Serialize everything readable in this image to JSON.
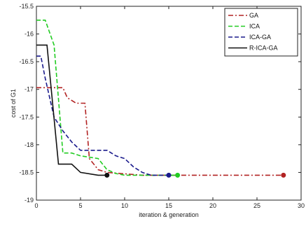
{
  "chart_data": {
    "type": "line",
    "title": "",
    "xlabel": "iteration & generation",
    "ylabel": "cost of G1",
    "xlim": [
      0,
      30
    ],
    "ylim": [
      -19,
      -15.5
    ],
    "xticks": [
      0,
      5,
      10,
      15,
      20,
      25,
      30
    ],
    "yticks": [
      -15.5,
      -16,
      -16.5,
      -17,
      -17.5,
      -18,
      -18.5,
      -19
    ],
    "xtick_labels": [
      "0",
      "5",
      "10",
      "15",
      "20",
      "25",
      "30"
    ],
    "ytick_labels": [
      "-15.5",
      "-16",
      "-16.5",
      "-17",
      "-17.5",
      "-18",
      "-18.5",
      "-19"
    ],
    "grid": false,
    "legend_position": "top-right",
    "series": [
      {
        "name": "GA",
        "color": "#b22222",
        "dash": "dashdot",
        "points": [
          [
            0,
            -16.97
          ],
          [
            3,
            -16.97
          ],
          [
            3.5,
            -17.15
          ],
          [
            4.5,
            -17.25
          ],
          [
            5.5,
            -17.25
          ],
          [
            6,
            -18.25
          ],
          [
            7,
            -18.45
          ],
          [
            8,
            -18.5
          ],
          [
            12,
            -18.55
          ],
          [
            16,
            -18.55
          ],
          [
            20,
            -18.55
          ],
          [
            28,
            -18.55
          ]
        ],
        "end_marker": true
      },
      {
        "name": "ICA",
        "color": "#22cc22",
        "dash": "dash",
        "points": [
          [
            0,
            -15.75
          ],
          [
            1,
            -15.75
          ],
          [
            2,
            -16.2
          ],
          [
            3,
            -18.15
          ],
          [
            4,
            -18.15
          ],
          [
            5,
            -18.2
          ],
          [
            7,
            -18.25
          ],
          [
            8,
            -18.45
          ],
          [
            9,
            -18.52
          ],
          [
            10,
            -18.55
          ],
          [
            14,
            -18.55
          ],
          [
            16,
            -18.55
          ]
        ],
        "end_marker": true
      },
      {
        "name": "ICA-GA",
        "color": "#1a1a8c",
        "dash": "dash",
        "points": [
          [
            0,
            -16.4
          ],
          [
            0.5,
            -16.4
          ],
          [
            1,
            -16.8
          ],
          [
            2,
            -17.5
          ],
          [
            3,
            -17.75
          ],
          [
            4,
            -17.95
          ],
          [
            5,
            -18.1
          ],
          [
            8,
            -18.1
          ],
          [
            9,
            -18.2
          ],
          [
            10,
            -18.25
          ],
          [
            11,
            -18.4
          ],
          [
            12,
            -18.5
          ],
          [
            13,
            -18.55
          ],
          [
            15,
            -18.55
          ]
        ],
        "end_marker": true
      },
      {
        "name": "R-ICA-GA",
        "color": "#111111",
        "dash": "solid",
        "points": [
          [
            0,
            -16.2
          ],
          [
            1.2,
            -16.2
          ],
          [
            2.5,
            -18.35
          ],
          [
            4,
            -18.35
          ],
          [
            5,
            -18.5
          ],
          [
            7,
            -18.55
          ],
          [
            8,
            -18.55
          ]
        ],
        "end_marker": true
      }
    ]
  }
}
